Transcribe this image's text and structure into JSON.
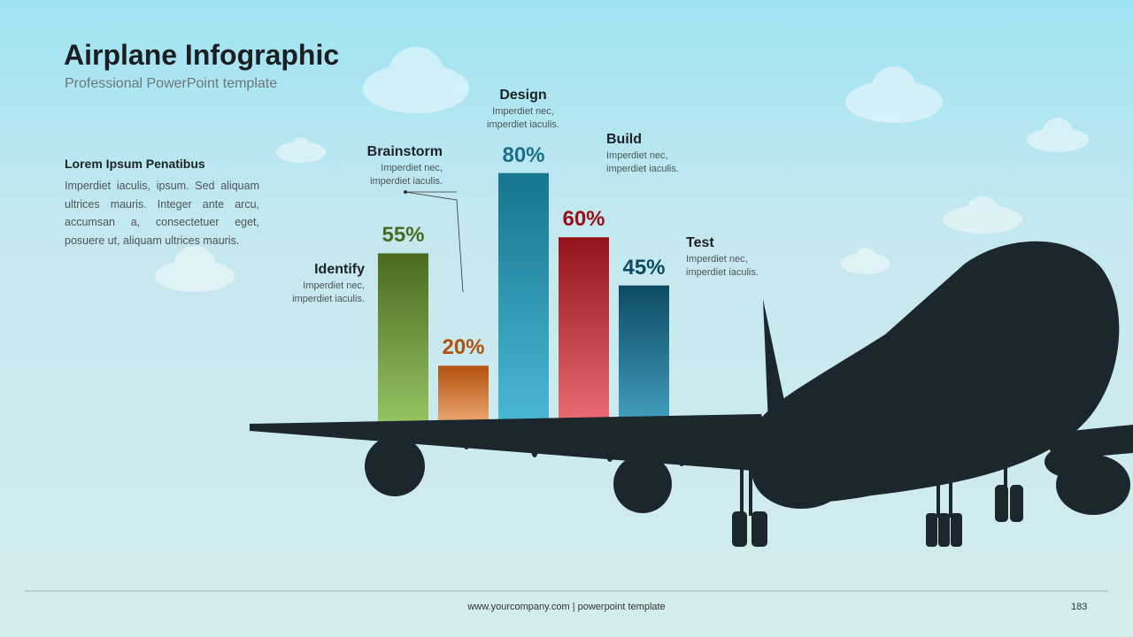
{
  "header": {
    "title": "Airplane Infographic",
    "subtitle": "Professional PowerPoint template"
  },
  "sidebar": {
    "heading": "Lorem Ipsum Penatibus",
    "body": "Imperdiet iaculis, ipsum. Sed aliquam ultrices mauris. Integer ante arcu, accumsan a, consectetuer eget, posuere ut, aliquam ultrices mauris."
  },
  "chart_data": {
    "type": "bar",
    "categories": [
      "Identify",
      "Brainstorm",
      "Design",
      "Build",
      "Test"
    ],
    "descriptions": [
      "Imperdiet nec, imperdiet iaculis.",
      "Imperdiet nec, imperdiet iaculis.",
      "Imperdiet nec, imperdiet iaculis.",
      "Imperdiet nec, imperdiet iaculis.",
      "Imperdiet nec, imperdiet iaculis."
    ],
    "values": [
      55,
      20,
      80,
      60,
      45
    ],
    "value_labels": [
      "55%",
      "20%",
      "80%",
      "60%",
      "45%"
    ],
    "colors": [
      [
        "#4b6a1f",
        "#9ac766"
      ],
      [
        "#b3510f",
        "#f2b27e"
      ],
      [
        "#16758f",
        "#4cbad6"
      ],
      [
        "#941219",
        "#ef6f78"
      ],
      [
        "#0d4a63",
        "#46a3c3"
      ]
    ],
    "label_colors": [
      "#4a6b22",
      "#b0520f",
      "#1a6e8a",
      "#9b1018",
      "#0d4a63"
    ]
  },
  "footer": {
    "text": "www.yourcompany.com | powerpoint template",
    "page": "183"
  }
}
